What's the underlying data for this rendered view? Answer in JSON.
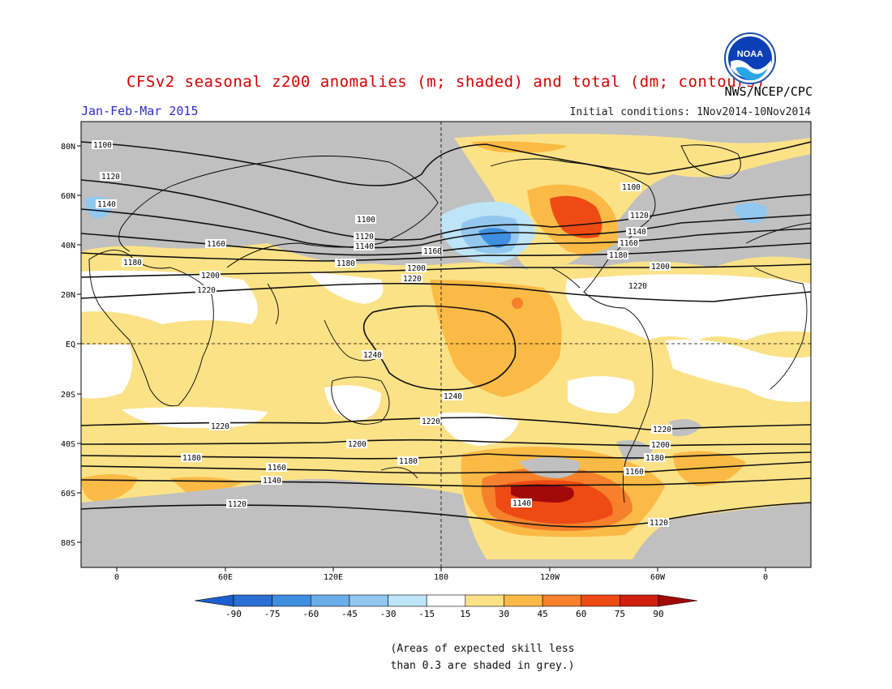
{
  "header": {
    "title": "CFSv2 seasonal z200 anomalies (m; shaded) and total (dm; contours)",
    "period": "Jan-Feb-Mar 2015",
    "initial_conditions": "Initial conditions: 1Nov2014-10Nov2014",
    "agency": "NWS/NCEP/CPC",
    "logo_text": "NOAA"
  },
  "map": {
    "lat_labels": [
      "80N",
      "60N",
      "40N",
      "20N",
      "EQ",
      "20S",
      "40S",
      "60S",
      "80S"
    ],
    "lon_labels": [
      "0",
      "60E",
      "120E",
      "180",
      "120W",
      "60W",
      "0"
    ],
    "contour_labels": [
      "1100",
      "1120",
      "1140",
      "1160",
      "1180",
      "1200",
      "1220",
      "1240"
    ],
    "shading_grey_meaning": "low skill",
    "colors": {
      "ocean_land_bg": "#ffffff",
      "grey": "#c0c0c0",
      "pos15": "#fce287",
      "pos30": "#fbba45",
      "pos45": "#f6802b",
      "pos60": "#ee4a14",
      "pos75": "#d11f10",
      "pos90": "#a10a08",
      "neg15": "#bde4f7",
      "neg30": "#92c7f0",
      "neg45": "#6aaee9",
      "neg60": "#3f8fe0",
      "neg75": "#2a6fd4"
    }
  },
  "colorbar": {
    "ticks": [
      "-90",
      "-75",
      "-60",
      "-45",
      "-30",
      "-15",
      "15",
      "30",
      "45",
      "60",
      "75",
      "90"
    ],
    "colors": [
      "#1c5fd0",
      "#2a6fd4",
      "#3f8fe0",
      "#6aaee9",
      "#92c7f0",
      "#bde4f7",
      "#ffffff",
      "#fce287",
      "#fbba45",
      "#f6802b",
      "#ee4a14",
      "#d11f10",
      "#a10a08"
    ]
  },
  "note": {
    "line1": "(Areas of expected skill less",
    "line2": "than 0.3 are shaded in grey.)"
  }
}
